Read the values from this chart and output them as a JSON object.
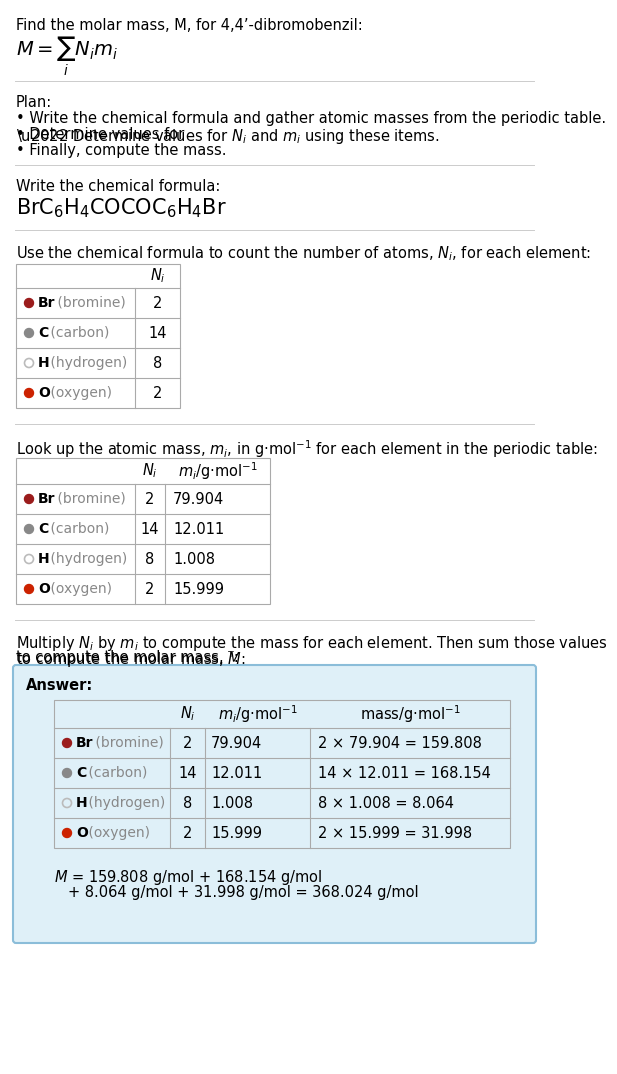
{
  "title_line": "Find the molar mass, M, for 4,4’-dibromobenzil:",
  "plan_header": "Plan:",
  "plan_bullets": [
    "Write the chemical formula and gather atomic masses from the periodic table.",
    "Determine values for Nᵢ and mᵢ using these items.",
    "Finally, compute the mass."
  ],
  "chem_formula_label": "Write the chemical formula:",
  "count_label": "Use the chemical formula to count the number of atoms, Nᵢ, for each element:",
  "lookup_label": "Look up the atomic mass, mᵢ, in g·mol⁻¹ for each element in the periodic table:",
  "multiply_label1": "Multiply Nᵢ by mᵢ to compute the mass for each element. Then sum those values",
  "multiply_label2": "to compute the molar mass, M:",
  "table_rows": [
    {
      "dot_color": "#9b1c1c",
      "dot_filled": true,
      "element": "Br (bromine)",
      "bold": "Br",
      "Ni": "2",
      "mi": "79.904",
      "mass": "2 × 79.904 = 159.808"
    },
    {
      "dot_color": "#888888",
      "dot_filled": true,
      "element": "C (carbon)",
      "bold": "C",
      "Ni": "14",
      "mi": "12.011",
      "mass": "14 × 12.011 = 168.154"
    },
    {
      "dot_color": "#bbbbbb",
      "dot_filled": false,
      "element": "H (hydrogen)",
      "bold": "H",
      "Ni": "8",
      "mi": "1.008",
      "mass": "8 × 1.008 = 8.064"
    },
    {
      "dot_color": "#cc2200",
      "dot_filled": true,
      "element": "O (oxygen)",
      "bold": "O",
      "Ni": "2",
      "mi": "15.999",
      "mass": "2 × 15.999 = 31.998"
    }
  ],
  "answer_bg_color": "#dff0f8",
  "answer_border_color": "#8bbdd9",
  "final_eq_line1": "M = 159.808 g/mol + 168.154 g/mol",
  "final_eq_line2": "+ 8.064 g/mol + 31.998 g/mol = 368.024 g/mol",
  "bg_color": "#ffffff",
  "sep_color": "#cccccc",
  "elem_color": "#888888"
}
